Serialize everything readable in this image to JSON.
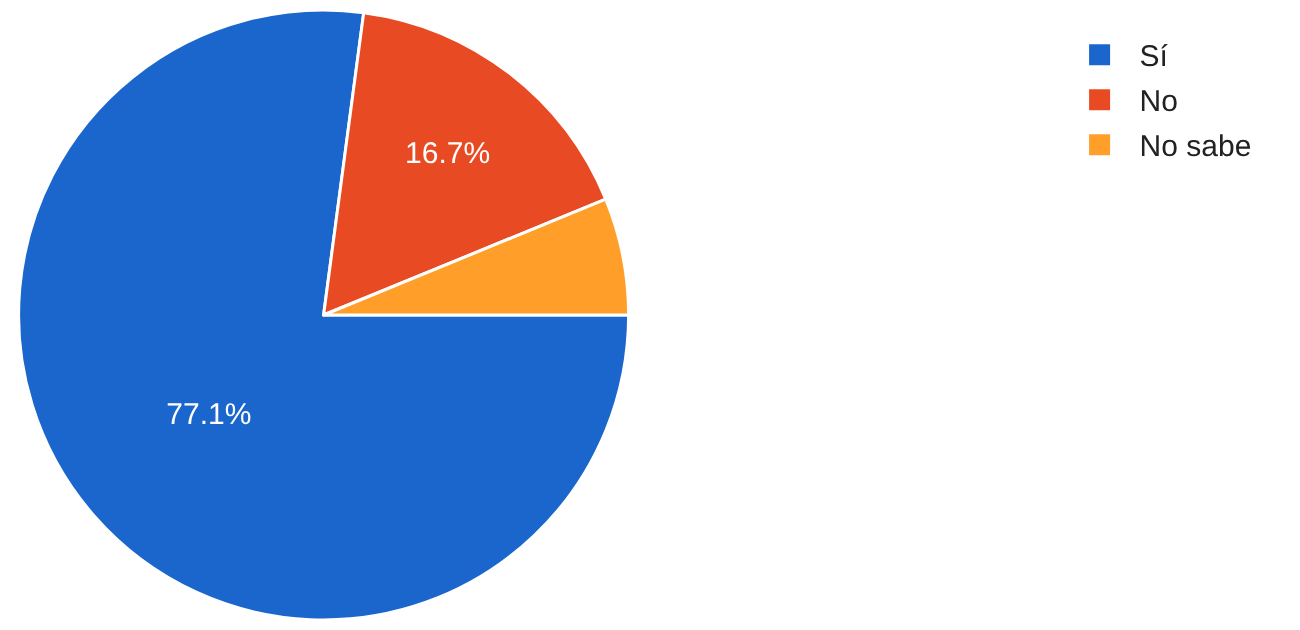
{
  "chart_data": {
    "type": "pie",
    "categories": [
      "Sí",
      "No",
      "No sabe"
    ],
    "values": [
      77.1,
      16.7,
      6.2
    ],
    "colors": [
      "#1a66cc",
      "#e84b24",
      "#ff9f2a"
    ],
    "value_labels": [
      "77.1%",
      "16.7%",
      null
    ],
    "legend": "top right"
  }
}
